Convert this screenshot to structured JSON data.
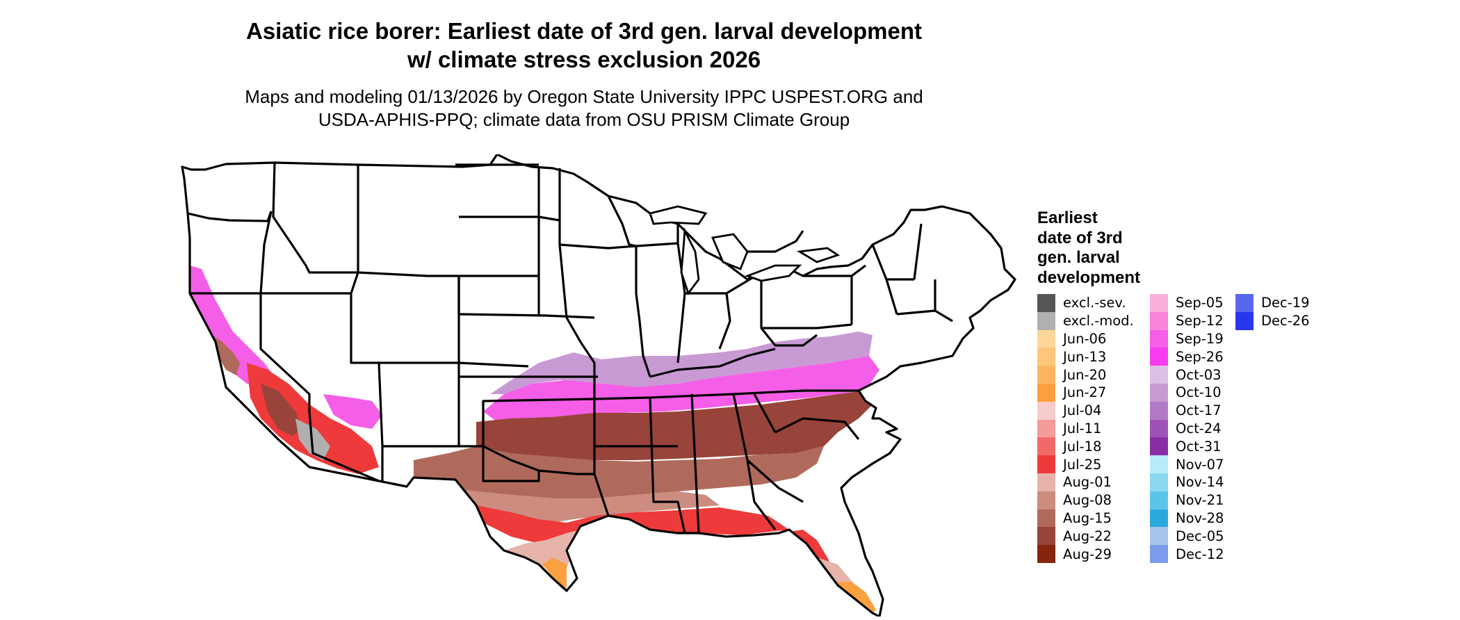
{
  "title_line1": "Asiatic rice borer: Earliest date of 3rd gen. larval development",
  "title_line2": "w/ climate stress exclusion 2026",
  "subtitle_line1": "Maps and modeling 01/13/2026 by Oregon State University IPPC USPEST.ORG and",
  "subtitle_line2": "USDA-APHIS-PPQ; climate data from OSU PRISM Climate Group",
  "legend": {
    "title_lines": [
      "Earliest",
      "date of 3rd",
      "gen. larval",
      "development"
    ],
    "columns": [
      [
        {
          "label": "excl.-sev.",
          "color": "#555555"
        },
        {
          "label": "excl.-mod.",
          "color": "#b0b0b0"
        },
        {
          "label": "Jun-06",
          "color": "#fdd79a"
        },
        {
          "label": "Jun-13",
          "color": "#fdc67a"
        },
        {
          "label": "Jun-20",
          "color": "#fcb460"
        },
        {
          "label": "Jun-27",
          "color": "#fba040"
        },
        {
          "label": "Jul-04",
          "color": "#f7cccc"
        },
        {
          "label": "Jul-11",
          "color": "#f49c9c"
        },
        {
          "label": "Jul-18",
          "color": "#f16a6a"
        },
        {
          "label": "Jul-25",
          "color": "#ee3a3a"
        },
        {
          "label": "Aug-01",
          "color": "#e6b3aa"
        },
        {
          "label": "Aug-08",
          "color": "#cc8c80"
        },
        {
          "label": "Aug-15",
          "color": "#b06a5c"
        },
        {
          "label": "Aug-22",
          "color": "#98443a"
        },
        {
          "label": "Aug-29",
          "color": "#86250f"
        }
      ],
      [
        {
          "label": "Sep-05",
          "color": "#f9b0dc"
        },
        {
          "label": "Sep-12",
          "color": "#f784d8"
        },
        {
          "label": "Sep-19",
          "color": "#f55ee6"
        },
        {
          "label": "Sep-26",
          "color": "#f53cf0"
        },
        {
          "label": "Oct-03",
          "color": "#dcc0e4"
        },
        {
          "label": "Oct-10",
          "color": "#c89ad4"
        },
        {
          "label": "Oct-17",
          "color": "#b27ac6"
        },
        {
          "label": "Oct-24",
          "color": "#9e52b8"
        },
        {
          "label": "Oct-31",
          "color": "#8a2ca8"
        },
        {
          "label": "Nov-07",
          "color": "#b8eaf8"
        },
        {
          "label": "Nov-14",
          "color": "#8cd8f0"
        },
        {
          "label": "Nov-21",
          "color": "#5cc4ea"
        },
        {
          "label": "Nov-28",
          "color": "#2aa8de"
        },
        {
          "label": "Dec-05",
          "color": "#a8c4ea"
        },
        {
          "label": "Dec-12",
          "color": "#7c9cee"
        }
      ],
      [
        {
          "label": "Dec-19",
          "color": "#5868ee"
        },
        {
          "label": "Dec-26",
          "color": "#2a36ee"
        }
      ]
    ]
  }
}
